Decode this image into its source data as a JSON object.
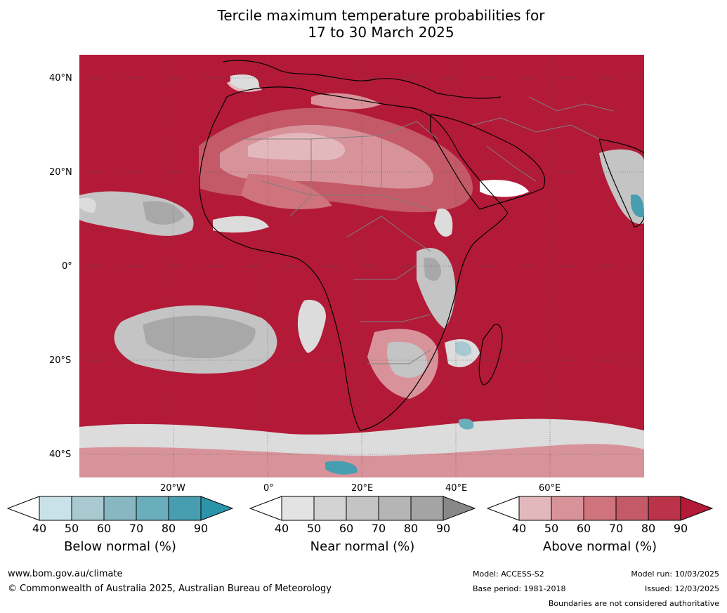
{
  "title": {
    "line1": "Tercile maximum temperature probabilities for",
    "line2": "17 to 30 March 2025"
  },
  "axes": {
    "lat_labels": [
      "40°N",
      "20°N",
      "0°",
      "20°S",
      "40°S"
    ],
    "lon_labels": [
      "20°W",
      "0°",
      "20°E",
      "40°E",
      "60°E"
    ]
  },
  "colorbars": [
    {
      "title": "Below normal (%)",
      "ticks": [
        "40",
        "50",
        "60",
        "70",
        "80",
        "90"
      ],
      "colors": [
        "#ffffff",
        "#c9e1e8",
        "#a9c9d1",
        "#88b7c2",
        "#6aaebb",
        "#479eb0",
        "#2b94ab"
      ]
    },
    {
      "title": "Near normal (%)",
      "ticks": [
        "40",
        "50",
        "60",
        "70",
        "80",
        "90"
      ],
      "colors": [
        "#ffffff",
        "#e3e3e3",
        "#d3d3d3",
        "#c4c4c4",
        "#b5b5b5",
        "#a4a4a4",
        "#888888"
      ]
    },
    {
      "title": "Above normal (%)",
      "ticks": [
        "40",
        "50",
        "60",
        "70",
        "80",
        "90"
      ],
      "colors": [
        "#ffffff",
        "#e3b8bd",
        "#d8939a",
        "#cf737d",
        "#c45a67",
        "#bb3348",
        "#b31a38"
      ]
    }
  ],
  "footer": {
    "website": "www.bom.gov.au/climate",
    "copyright": "© Commonwealth of Australia 2025, Australian Bureau of Meteorology",
    "model": "Model: ACCESS-S2",
    "base_period": "Base period: 1981-2018",
    "model_run": "Model run: 10/03/2025",
    "issued": "Issued: 12/03/2025",
    "boundaries_note": "Boundaries are not considered authoritative"
  },
  "map_colors": {
    "above_90": "#b31a38",
    "above_80": "#bb3348",
    "above_70": "#c45a67",
    "above_60": "#cf737d",
    "above_50": "#d8939a",
    "above_40": "#e3b8bd",
    "near_light": "#dcdcdc",
    "near_mid": "#c4c4c4",
    "near_dark": "#a8a8a8",
    "below_light": "#a9c9d1",
    "below_dark": "#479eb0",
    "coast": "#000000",
    "border": "#808080",
    "grid": "#555555"
  }
}
